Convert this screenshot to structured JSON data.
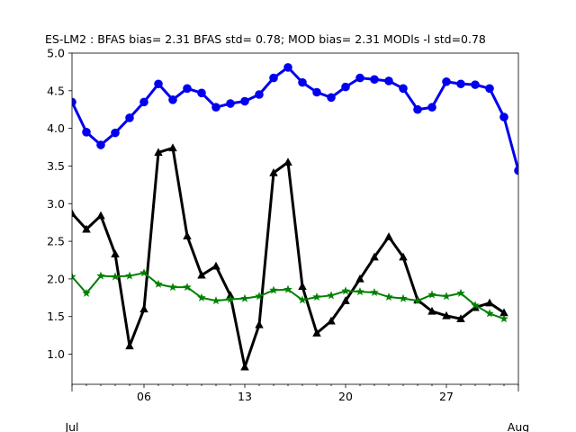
{
  "chart_data": {
    "type": "line",
    "title": "ES-LM2   : BFAS bias= 2.31 BFAS std= 0.78; MOD bias= 2.31 MODls -l std=0.78",
    "xlabel": "",
    "ylabel": "",
    "xlim": [
      1,
      32
    ],
    "ylim": [
      0.6,
      5.0
    ],
    "grid": false,
    "legend": "none",
    "x": [
      1,
      2,
      3,
      4,
      5,
      6,
      7,
      8,
      9,
      10,
      11,
      12,
      13,
      14,
      15,
      16,
      17,
      18,
      19,
      20,
      21,
      22,
      23,
      24,
      25,
      26,
      27,
      28,
      29,
      30,
      31,
      32
    ],
    "x_ticks": [
      {
        "x": 6,
        "label": "06"
      },
      {
        "x": 13,
        "label": "13"
      },
      {
        "x": 20,
        "label": "20"
      },
      {
        "x": 27,
        "label": "27"
      }
    ],
    "x_month_labels": [
      {
        "x": 1,
        "label": "Jul"
      },
      {
        "x": 32,
        "label": "Aug"
      }
    ],
    "y_ticks": [
      1.0,
      1.5,
      2.0,
      2.5,
      3.0,
      3.5,
      4.0,
      4.5,
      5.0
    ],
    "y_tick_labels": [
      "1.0",
      "1.5",
      "2.0",
      "2.5",
      "3.0",
      "3.5",
      "4.0",
      "4.5",
      "5.0"
    ],
    "series": [
      {
        "color": "#0000ee",
        "marker": "circle",
        "linewidth": 3,
        "x": [
          1,
          2,
          3,
          4,
          5,
          6,
          7,
          8,
          9,
          10,
          11,
          12,
          13,
          14,
          15,
          16,
          17,
          18,
          19,
          20,
          21,
          22,
          23,
          24,
          25,
          26,
          27,
          28,
          29,
          30,
          31,
          32
        ],
        "values": [
          4.35,
          3.95,
          3.78,
          3.94,
          4.14,
          4.35,
          4.59,
          4.38,
          4.53,
          4.47,
          4.28,
          4.33,
          4.36,
          4.45,
          4.67,
          4.81,
          4.61,
          4.48,
          4.41,
          4.55,
          4.67,
          4.65,
          4.63,
          4.53,
          4.25,
          4.28,
          4.62,
          4.59,
          4.58,
          4.53,
          4.15,
          3.44
        ]
      },
      {
        "color": "#000000",
        "marker": "triangle",
        "linewidth": 3,
        "x": [
          1,
          2,
          3,
          4,
          5,
          6,
          7,
          8,
          9,
          10,
          11,
          12,
          13,
          14,
          15,
          16,
          17,
          18,
          19,
          20,
          21,
          22,
          23,
          24,
          25,
          26,
          27,
          28,
          29,
          30,
          31
        ],
        "values": [
          2.87,
          2.66,
          2.84,
          2.33,
          1.11,
          1.6,
          3.68,
          3.74,
          2.57,
          2.05,
          2.17,
          1.78,
          0.83,
          1.39,
          3.41,
          3.55,
          1.9,
          1.28,
          1.44,
          1.71,
          2.0,
          2.29,
          2.56,
          2.29,
          1.72,
          1.57,
          1.51,
          1.47,
          1.62,
          1.68,
          1.55
        ]
      },
      {
        "color": "#008000",
        "marker": "star",
        "linewidth": 2,
        "x": [
          1,
          2,
          3,
          4,
          5,
          6,
          7,
          8,
          9,
          10,
          11,
          12,
          13,
          14,
          15,
          16,
          17,
          18,
          19,
          20,
          21,
          22,
          23,
          24,
          25,
          26,
          27,
          28,
          29,
          30,
          31
        ],
        "values": [
          2.03,
          1.81,
          2.04,
          2.03,
          2.04,
          2.08,
          1.93,
          1.89,
          1.89,
          1.75,
          1.71,
          1.73,
          1.74,
          1.77,
          1.85,
          1.86,
          1.72,
          1.76,
          1.78,
          1.84,
          1.83,
          1.82,
          1.76,
          1.74,
          1.71,
          1.79,
          1.77,
          1.81,
          1.65,
          1.54,
          1.47
        ]
      }
    ]
  }
}
